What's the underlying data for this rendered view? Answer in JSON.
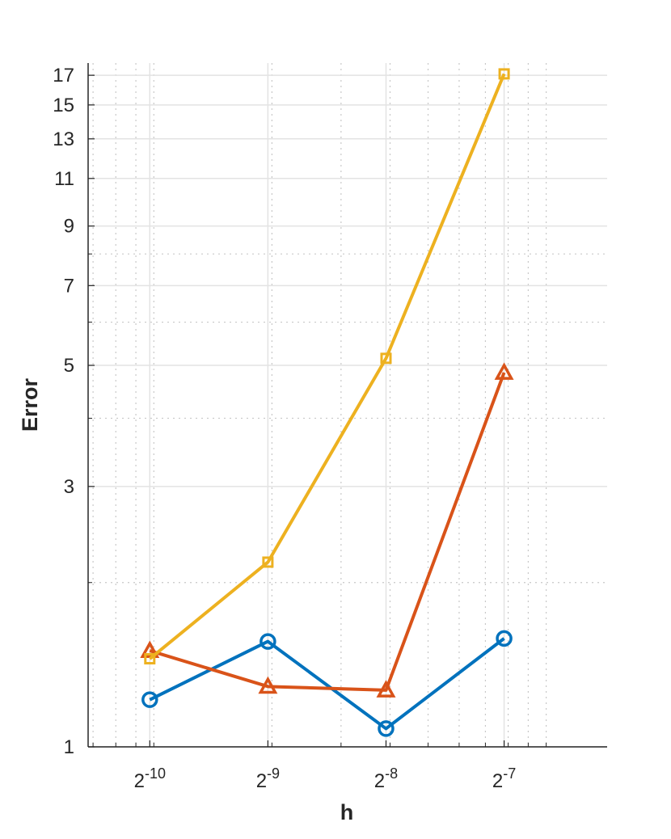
{
  "chart_data": {
    "type": "line",
    "title": "",
    "xlabel": "h",
    "ylabel": "Error",
    "xscale": "log2",
    "yscale": "log",
    "grid": true,
    "legend": "none",
    "xlim": [
      0.00068,
      0.0143
    ],
    "ylim": [
      1,
      17.9
    ],
    "x_ticks": [
      {
        "value": 0.0009765625,
        "base": "2",
        "exp": "-10"
      },
      {
        "value": 0.001953125,
        "base": "2",
        "exp": "-9"
      },
      {
        "value": 0.00390625,
        "base": "2",
        "exp": "-8"
      },
      {
        "value": 0.0078125,
        "base": "2",
        "exp": "-7"
      }
    ],
    "y_ticks": [
      1,
      3,
      5,
      7,
      9,
      11,
      13,
      15,
      17
    ],
    "y_tick_labels": [
      "1",
      "3",
      "5",
      "7",
      "9",
      "11",
      "13",
      "15",
      "17"
    ],
    "x": [
      0.0009765625,
      0.001953125,
      0.00390625,
      0.0078125
    ],
    "series": [
      {
        "values": [
          1.22,
          1.56,
          1.08,
          1.58
        ],
        "color": "#0072BD",
        "marker": "circle"
      },
      {
        "values": [
          1.5,
          1.29,
          1.27,
          4.85
        ],
        "color": "#D95319",
        "marker": "triangle"
      },
      {
        "values": [
          1.45,
          2.18,
          5.15,
          17.1
        ],
        "color": "#EDB120",
        "marker": "square"
      }
    ]
  },
  "colors": {
    "axis": "#262626",
    "grid_major": "#e3e3e3",
    "grid_minor": "#c8c8c8"
  }
}
